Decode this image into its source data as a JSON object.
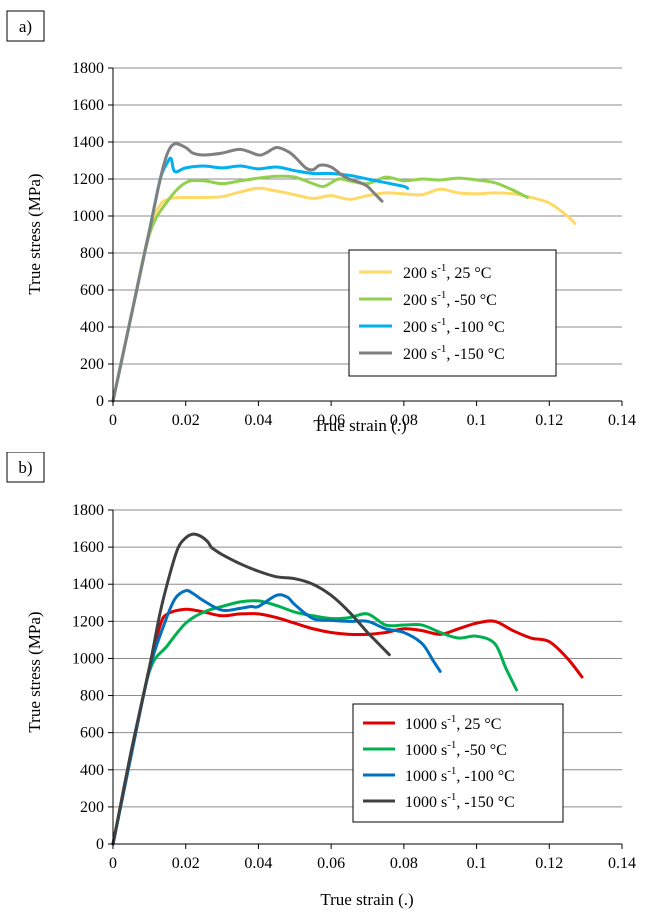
{
  "chart_data": [
    {
      "type": "line",
      "panel_label": "a)",
      "xlabel": "True strain (.)",
      "ylabel": "True stress (MPa)",
      "xlim": [
        0,
        0.14
      ],
      "ylim": [
        0,
        1800
      ],
      "xticks": [
        "0",
        "0.02",
        "0.04",
        "0.06",
        "0.08",
        "0.1",
        "0.12",
        "0.14"
      ],
      "yticks": [
        "0",
        "200",
        "400",
        "600",
        "800",
        "1000",
        "1200",
        "1400",
        "1600",
        "1800"
      ],
      "grid": "horizontal",
      "legend_position": "center-right",
      "series": [
        {
          "name": "200 s-1, 25 °C",
          "rate": "200 s",
          "sup": "-1",
          "rest": ", 25 °C",
          "color": "#FFD966",
          "x": [
            0,
            0.005,
            0.01,
            0.013,
            0.016,
            0.02,
            0.025,
            0.03,
            0.035,
            0.04,
            0.045,
            0.05,
            0.055,
            0.06,
            0.065,
            0.07,
            0.075,
            0.08,
            0.085,
            0.09,
            0.095,
            0.1,
            0.105,
            0.11,
            0.115,
            0.12,
            0.125,
            0.127
          ],
          "y": [
            0,
            460,
            920,
            1060,
            1095,
            1100,
            1100,
            1105,
            1130,
            1150,
            1135,
            1115,
            1095,
            1110,
            1090,
            1110,
            1125,
            1120,
            1115,
            1145,
            1125,
            1120,
            1125,
            1120,
            1100,
            1070,
            1000,
            960
          ]
        },
        {
          "name": "200 s-1, -50 °C",
          "rate": "200 s",
          "sup": "-1",
          "rest": ", -50 °C",
          "color": "#92D050",
          "x": [
            0,
            0.005,
            0.01,
            0.015,
            0.02,
            0.025,
            0.03,
            0.035,
            0.04,
            0.045,
            0.05,
            0.055,
            0.058,
            0.062,
            0.065,
            0.07,
            0.075,
            0.08,
            0.085,
            0.09,
            0.095,
            0.1,
            0.105,
            0.11,
            0.114
          ],
          "y": [
            0,
            460,
            900,
            1080,
            1180,
            1190,
            1175,
            1190,
            1205,
            1215,
            1210,
            1175,
            1160,
            1200,
            1190,
            1175,
            1210,
            1190,
            1200,
            1195,
            1205,
            1195,
            1180,
            1140,
            1100
          ]
        },
        {
          "name": "200 s-1, -100 °C",
          "rate": "200 s",
          "sup": "-1",
          "rest": ", -100 °C",
          "color": "#00B0F0",
          "x": [
            0,
            0.005,
            0.01,
            0.013,
            0.015,
            0.016,
            0.017,
            0.02,
            0.025,
            0.03,
            0.035,
            0.04,
            0.045,
            0.05,
            0.055,
            0.06,
            0.065,
            0.07,
            0.075,
            0.08,
            0.081
          ],
          "y": [
            0,
            460,
            920,
            1200,
            1290,
            1310,
            1240,
            1260,
            1270,
            1260,
            1270,
            1255,
            1265,
            1245,
            1230,
            1230,
            1220,
            1200,
            1180,
            1160,
            1150
          ]
        },
        {
          "name": "200 s-1, -150 °C",
          "rate": "200 s",
          "sup": "-1",
          "rest": ", -150 °C",
          "color": "#808080",
          "x": [
            0,
            0.005,
            0.01,
            0.013,
            0.015,
            0.017,
            0.02,
            0.022,
            0.025,
            0.03,
            0.035,
            0.04,
            0.042,
            0.045,
            0.048,
            0.05,
            0.053,
            0.055,
            0.057,
            0.06,
            0.063,
            0.065,
            0.068,
            0.07,
            0.072,
            0.074
          ],
          "y": [
            0,
            460,
            920,
            1200,
            1340,
            1390,
            1370,
            1340,
            1330,
            1340,
            1360,
            1330,
            1340,
            1370,
            1350,
            1320,
            1260,
            1250,
            1275,
            1265,
            1220,
            1200,
            1180,
            1160,
            1120,
            1080
          ]
        }
      ]
    },
    {
      "type": "line",
      "panel_label": "b)",
      "xlabel": "True strain (.)",
      "ylabel": "True stress (MPa)",
      "xlim": [
        0,
        0.14
      ],
      "ylim": [
        0,
        1800
      ],
      "xticks": [
        "0",
        "0.02",
        "0.04",
        "0.06",
        "0.08",
        "0.1",
        "0.12",
        "0.14"
      ],
      "yticks": [
        "0",
        "200",
        "400",
        "600",
        "800",
        "1000",
        "1200",
        "1400",
        "1600",
        "1800"
      ],
      "grid": "horizontal",
      "legend_position": "bottom-right",
      "series": [
        {
          "name": "1000 s-1, 25 °C",
          "rate": "1000 s",
          "sup": "-1",
          "rest": ", 25 °C",
          "color": "#E00000",
          "x": [
            0,
            0.005,
            0.01,
            0.013,
            0.015,
            0.02,
            0.025,
            0.03,
            0.035,
            0.04,
            0.045,
            0.05,
            0.055,
            0.06,
            0.065,
            0.07,
            0.075,
            0.08,
            0.085,
            0.09,
            0.095,
            0.1,
            0.105,
            0.11,
            0.115,
            0.12,
            0.125,
            0.129
          ],
          "y": [
            0,
            480,
            950,
            1180,
            1240,
            1265,
            1250,
            1230,
            1240,
            1240,
            1220,
            1190,
            1160,
            1140,
            1130,
            1130,
            1140,
            1160,
            1150,
            1130,
            1160,
            1190,
            1200,
            1150,
            1110,
            1090,
            1000,
            900
          ]
        },
        {
          "name": "1000 s-1, -50 °C",
          "rate": "1000 s",
          "sup": "-1",
          "rest": ", -50 °C",
          "color": "#00B050",
          "x": [
            0,
            0.005,
            0.01,
            0.015,
            0.02,
            0.025,
            0.03,
            0.035,
            0.04,
            0.045,
            0.05,
            0.055,
            0.06,
            0.065,
            0.07,
            0.075,
            0.08,
            0.085,
            0.09,
            0.095,
            0.1,
            0.105,
            0.108,
            0.111
          ],
          "y": [
            0,
            480,
            930,
            1070,
            1190,
            1250,
            1280,
            1305,
            1310,
            1285,
            1250,
            1230,
            1215,
            1220,
            1240,
            1180,
            1180,
            1180,
            1140,
            1110,
            1120,
            1080,
            950,
            830
          ]
        },
        {
          "name": "1000 s-1, -100 °C",
          "rate": "1000 s",
          "sup": "-1",
          "rest": ", -100 °C",
          "color": "#0070C0",
          "x": [
            0,
            0.005,
            0.01,
            0.014,
            0.017,
            0.02,
            0.022,
            0.025,
            0.03,
            0.035,
            0.038,
            0.04,
            0.045,
            0.048,
            0.05,
            0.055,
            0.06,
            0.065,
            0.07,
            0.075,
            0.08,
            0.085,
            0.088,
            0.09
          ],
          "y": [
            0,
            480,
            940,
            1180,
            1320,
            1365,
            1350,
            1310,
            1260,
            1270,
            1280,
            1280,
            1340,
            1330,
            1290,
            1215,
            1205,
            1200,
            1200,
            1160,
            1140,
            1080,
            990,
            930
          ]
        },
        {
          "name": "1000 s-1, -150 °C",
          "rate": "1000 s",
          "sup": "-1",
          "rest": ", -150 °C",
          "color": "#404040",
          "x": [
            0,
            0.005,
            0.01,
            0.013,
            0.016,
            0.018,
            0.02,
            0.022,
            0.024,
            0.026,
            0.027,
            0.028,
            0.03,
            0.035,
            0.04,
            0.045,
            0.05,
            0.055,
            0.06,
            0.065,
            0.07,
            0.072,
            0.074,
            0.076
          ],
          "y": [
            0,
            500,
            950,
            1250,
            1480,
            1600,
            1650,
            1670,
            1660,
            1630,
            1600,
            1585,
            1560,
            1510,
            1470,
            1440,
            1430,
            1400,
            1340,
            1250,
            1140,
            1100,
            1060,
            1020
          ]
        }
      ]
    }
  ]
}
